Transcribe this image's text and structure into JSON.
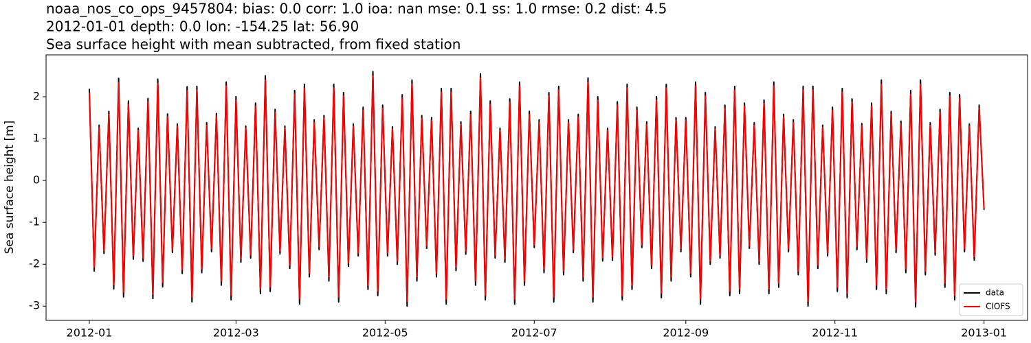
{
  "chart_data": {
    "type": "line",
    "title": [
      "noaa_nos_co_ops_9457804: bias: 0.0  corr: 1.0  ioa: nan  mse: 0.1  ss: 1.0  rmse: 0.2  dist: 4.5",
      "2012-01-01 depth: 0.0 lon: -154.25 lat: 56.90",
      "Sea surface height with mean subtracted, from fixed station"
    ],
    "y_label": "Sea surface height [m]",
    "x": [
      0,
      2,
      4,
      6,
      8,
      10,
      12,
      14,
      16,
      18,
      20,
      22,
      24,
      26,
      28,
      30,
      32,
      34,
      36,
      38,
      40,
      42,
      44,
      46,
      48,
      50,
      52,
      54,
      56,
      58,
      60,
      62,
      64,
      66,
      68,
      70,
      72,
      74,
      76,
      78,
      80,
      82,
      84,
      86,
      88,
      90,
      92,
      94,
      96,
      98,
      100,
      102,
      104,
      106,
      108,
      110,
      112,
      114,
      116,
      118,
      120,
      122,
      124,
      126,
      128,
      130,
      132,
      134,
      136,
      138,
      140,
      142,
      144,
      146,
      148,
      150,
      152,
      154,
      156,
      158,
      160,
      162,
      164,
      166,
      168,
      170,
      172,
      174,
      176,
      178,
      180,
      182,
      184,
      186,
      188,
      190,
      192,
      194,
      196,
      198,
      200,
      202,
      204,
      206,
      208,
      210,
      212,
      214,
      216,
      218,
      220,
      222,
      224,
      226,
      228,
      230,
      232,
      234,
      236,
      238,
      240,
      242,
      244,
      246,
      248,
      250,
      252,
      254,
      256,
      258,
      260,
      262,
      264,
      266,
      268,
      270,
      272,
      274,
      276,
      278,
      280,
      282,
      284,
      286,
      288,
      290,
      292,
      294,
      296,
      298,
      300,
      302,
      304,
      306,
      308,
      310,
      312,
      314,
      316,
      318,
      320,
      322,
      324,
      326,
      328,
      330,
      332,
      334,
      336,
      338,
      340,
      342,
      344,
      346,
      348,
      350,
      352,
      354,
      356,
      358,
      360,
      362,
      364,
      366
    ],
    "series": [
      {
        "name": "data",
        "color": "#000000",
        "values": [
          2.19,
          -2.16,
          1.32,
          -1.74,
          1.65,
          -2.59,
          2.44,
          -2.78,
          1.9,
          -1.88,
          1.25,
          -1.93,
          1.96,
          -2.82,
          2.42,
          -2.54,
          1.59,
          -1.72,
          1.35,
          -2.22,
          2.24,
          -2.9,
          2.25,
          -2.2,
          1.38,
          -1.7,
          1.6,
          -2.5,
          2.35,
          -2.85,
          2.0,
          -1.95,
          1.3,
          -1.85,
          1.85,
          -2.7,
          2.5,
          -2.65,
          1.7,
          -1.75,
          1.3,
          -2.1,
          2.15,
          -2.95,
          2.3,
          -2.3,
          1.45,
          -1.65,
          1.55,
          -2.4,
          2.3,
          -2.9,
          2.1,
          -2.05,
          1.35,
          -1.8,
          1.75,
          -2.6,
          2.6,
          -2.75,
          1.8,
          -1.8,
          1.28,
          -2.0,
          2.05,
          -3.0,
          2.4,
          -2.4,
          1.55,
          -1.62,
          1.5,
          -2.3,
          2.2,
          -2.95,
          2.2,
          -2.15,
          1.4,
          -1.76,
          1.65,
          -2.5,
          2.55,
          -2.85,
          1.9,
          -1.85,
          1.25,
          -1.95,
          1.95,
          -2.95,
          2.35,
          -2.5,
          1.65,
          -1.6,
          1.45,
          -2.2,
          2.1,
          -2.9,
          2.25,
          -2.25,
          1.45,
          -1.72,
          1.58,
          -2.4,
          2.45,
          -2.9,
          2.0,
          -1.92,
          1.25,
          -1.9,
          1.88,
          -2.85,
          2.3,
          -2.6,
          1.75,
          -1.6,
          1.4,
          -2.1,
          2.0,
          -2.8,
          2.3,
          -2.4,
          1.5,
          -1.7,
          1.5,
          -2.3,
          2.35,
          -2.95,
          2.1,
          -2.0,
          1.28,
          -1.85,
          1.8,
          -2.75,
          2.25,
          -2.7,
          1.85,
          -1.62,
          1.38,
          -2.0,
          1.92,
          -2.7,
          2.35,
          -2.55,
          1.58,
          -1.7,
          1.45,
          -2.25,
          2.25,
          -3.0,
          2.25,
          -2.1,
          1.32,
          -1.8,
          1.75,
          -2.65,
          2.2,
          -2.8,
          1.95,
          -1.65,
          1.36,
          -1.95,
          1.85,
          -2.6,
          2.4,
          -2.7,
          1.65,
          -1.72,
          1.42,
          -2.2,
          2.15,
          -3.02,
          2.4,
          -2.25,
          1.38,
          -1.78,
          1.7,
          -2.55,
          2.1,
          -2.85,
          2.05,
          -1.7,
          1.35,
          -1.9,
          1.8,
          -0.7
        ]
      },
      {
        "name": "CIOFS",
        "color": "#ff0000",
        "values": [
          2.1,
          -2.07,
          1.27,
          -1.67,
          1.58,
          -2.49,
          2.34,
          -2.67,
          1.82,
          -1.8,
          1.2,
          -1.85,
          1.88,
          -2.71,
          2.32,
          -2.44,
          1.53,
          -1.65,
          1.3,
          -2.13,
          2.15,
          -2.78,
          2.16,
          -2.11,
          1.32,
          -1.63,
          1.54,
          -2.4,
          2.26,
          -2.74,
          1.92,
          -1.87,
          1.25,
          -1.78,
          1.78,
          -2.59,
          2.4,
          -2.54,
          1.63,
          -1.68,
          1.25,
          -2.02,
          2.06,
          -2.83,
          2.21,
          -2.21,
          1.39,
          -1.58,
          1.49,
          -2.3,
          2.21,
          -2.78,
          2.02,
          -1.97,
          1.3,
          -1.73,
          1.68,
          -2.5,
          2.5,
          -2.64,
          1.73,
          -1.73,
          1.23,
          -1.92,
          1.97,
          -2.88,
          2.3,
          -2.3,
          1.49,
          -1.56,
          1.44,
          -2.21,
          2.11,
          -2.83,
          2.11,
          -2.06,
          1.34,
          -1.69,
          1.58,
          -2.4,
          2.45,
          -2.74,
          1.82,
          -1.78,
          1.2,
          -1.87,
          1.87,
          -2.83,
          2.26,
          -2.4,
          1.58,
          -1.54,
          1.39,
          -2.11,
          2.02,
          -2.78,
          2.16,
          -2.16,
          1.39,
          -1.65,
          1.52,
          -2.3,
          2.35,
          -2.78,
          1.92,
          -1.84,
          1.2,
          -1.82,
          1.8,
          -2.74,
          2.21,
          -2.5,
          1.68,
          -1.54,
          1.34,
          -2.02,
          1.92,
          -2.69,
          2.21,
          -2.3,
          1.44,
          -1.63,
          1.44,
          -2.21,
          2.26,
          -2.83,
          2.02,
          -1.92,
          1.23,
          -1.78,
          1.73,
          -2.64,
          2.16,
          -2.59,
          1.78,
          -1.56,
          1.32,
          -1.92,
          1.84,
          -2.59,
          2.26,
          -2.45,
          1.52,
          -1.63,
          1.39,
          -2.16,
          2.16,
          -2.88,
          2.16,
          -2.02,
          1.27,
          -1.73,
          1.68,
          -2.54,
          2.11,
          -2.69,
          1.87,
          -1.58,
          1.31,
          -1.87,
          1.78,
          -2.5,
          2.3,
          -2.59,
          1.58,
          -1.65,
          1.36,
          -2.11,
          2.06,
          -2.9,
          2.3,
          -2.16,
          1.32,
          -1.71,
          1.63,
          -2.45,
          2.02,
          -2.74,
          1.97,
          -1.63,
          1.3,
          -1.82,
          1.73,
          -0.67
        ]
      }
    ],
    "xlim": [
      -17.7,
      383.8
    ],
    "xticks": [
      {
        "value": 0,
        "label": "2012-01"
      },
      {
        "value": 60,
        "label": "2012-03"
      },
      {
        "value": 121,
        "label": "2012-05"
      },
      {
        "value": 182,
        "label": "2012-07"
      },
      {
        "value": 244,
        "label": "2012-09"
      },
      {
        "value": 305,
        "label": "2012-11"
      },
      {
        "value": 366,
        "label": "2013-01"
      }
    ],
    "ylim": [
      -3.34,
      3.0
    ],
    "yticks": [
      -3,
      -2,
      -1,
      0,
      1,
      2
    ],
    "legend": "lower right"
  }
}
